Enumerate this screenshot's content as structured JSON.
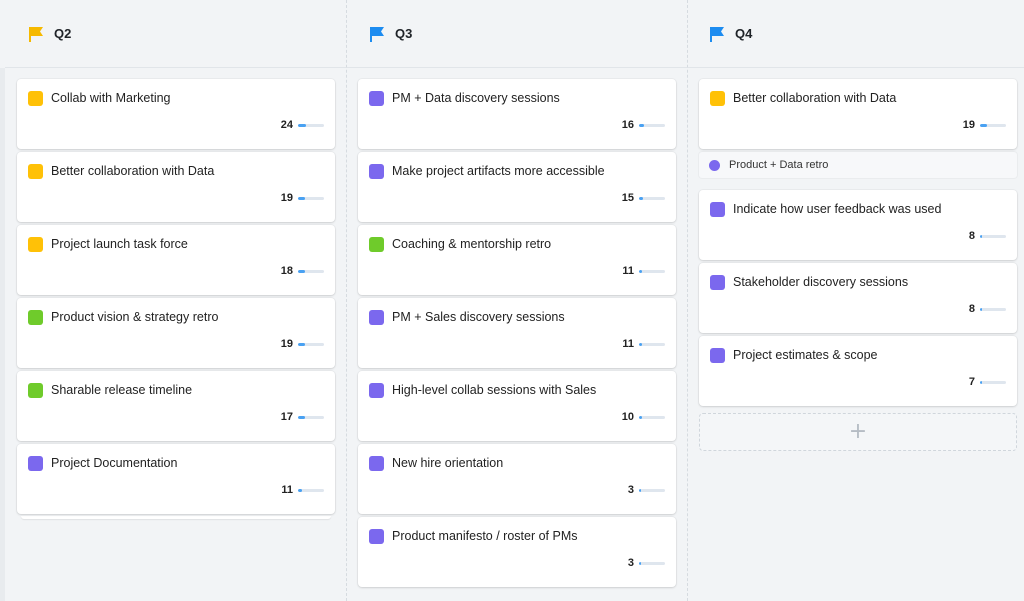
{
  "columns": [
    {
      "title": "Q2",
      "flag_color": "#f6b900",
      "cards": [
        {
          "title": "Collab with Marketing",
          "color": "#ffc107",
          "count": "24",
          "progress": 0.3
        },
        {
          "title": "Better collaboration with Data",
          "color": "#ffc107",
          "count": "19",
          "progress": 0.25
        },
        {
          "title": "Project launch task force",
          "color": "#ffc107",
          "count": "18",
          "progress": 0.25
        },
        {
          "title": "Product vision & strategy retro",
          "color": "#6fcb2b",
          "count": "19",
          "progress": 0.25
        },
        {
          "title": "Sharable release timeline",
          "color": "#6fcb2b",
          "count": "17",
          "progress": 0.25
        },
        {
          "title": "Project Documentation",
          "color": "#7b68ee",
          "count": "11",
          "progress": 0.15
        }
      ]
    },
    {
      "title": "Q3",
      "flag_color": "#1d8cf0",
      "cards": [
        {
          "title": "PM + Data discovery sessions",
          "color": "#7b68ee",
          "count": "16",
          "progress": 0.2
        },
        {
          "title": "Make project artifacts more accessible",
          "color": "#7b68ee",
          "count": "15",
          "progress": 0.15
        },
        {
          "title": "Coaching & mentorship retro",
          "color": "#6fcb2b",
          "count": "11",
          "progress": 0.1
        },
        {
          "title": "PM + Sales discovery sessions",
          "color": "#7b68ee",
          "count": "11",
          "progress": 0.1
        },
        {
          "title": "High-level collab sessions with Sales",
          "color": "#7b68ee",
          "count": "10",
          "progress": 0.1
        },
        {
          "title": "New hire orientation",
          "color": "#7b68ee",
          "count": "3",
          "progress": 0.05
        },
        {
          "title": "Product manifesto / roster of PMs",
          "color": "#7b68ee",
          "count": "3",
          "progress": 0.05
        }
      ]
    },
    {
      "title": "Q4",
      "flag_color": "#1d8cf0",
      "cards": [
        {
          "title": "Better collaboration with Data",
          "color": "#ffc107",
          "count": "19",
          "progress": 0.25
        }
      ],
      "retro_item": {
        "label": "Product + Data retro",
        "color": "#7b68ee"
      },
      "cards_after": [
        {
          "title": "Indicate how user feedback was used",
          "color": "#7b68ee",
          "count": "8",
          "progress": 0.08
        },
        {
          "title": "Stakeholder discovery sessions",
          "color": "#7b68ee",
          "count": "8",
          "progress": 0.08
        },
        {
          "title": "Project estimates & scope",
          "color": "#7b68ee",
          "count": "7",
          "progress": 0.07
        }
      ],
      "add_icon": "plus-icon"
    }
  ]
}
